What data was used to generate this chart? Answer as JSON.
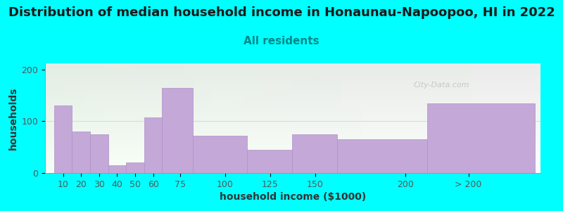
{
  "title": "Distribution of median household income in Honaunau-Napoopoo, HI in 2022",
  "subtitle": "All residents",
  "xlabel": "household income ($1000)",
  "ylabel": "households",
  "background_color": "#00FFFF",
  "bar_color": "#c4a8d8",
  "bar_edge_color": "#b090c8",
  "categories": [
    "10",
    "20",
    "30",
    "40",
    "50",
    "60",
    "75",
    "100",
    "125",
    "150",
    "200",
    "> 200"
  ],
  "values": [
    130,
    80,
    75,
    15,
    20,
    107,
    165,
    72,
    45,
    75,
    65,
    135
  ],
  "bar_lefts": [
    5,
    15,
    25,
    35,
    45,
    55,
    65,
    82,
    112,
    137,
    162,
    212
  ],
  "bar_widths": [
    10,
    10,
    10,
    10,
    10,
    10,
    17,
    30,
    25,
    25,
    50,
    60
  ],
  "tick_positions": [
    10,
    20,
    30,
    40,
    50,
    60,
    75,
    100,
    125,
    150,
    200,
    235
  ],
  "xlim": [
    0,
    275
  ],
  "ylim": [
    0,
    212
  ],
  "yticks": [
    0,
    100,
    200
  ],
  "title_fontsize": 13,
  "subtitle_fontsize": 11,
  "subtitle_color": "#008888",
  "axis_label_fontsize": 10,
  "tick_fontsize": 9,
  "watermark": "City-Data.com",
  "grid_y": 100
}
